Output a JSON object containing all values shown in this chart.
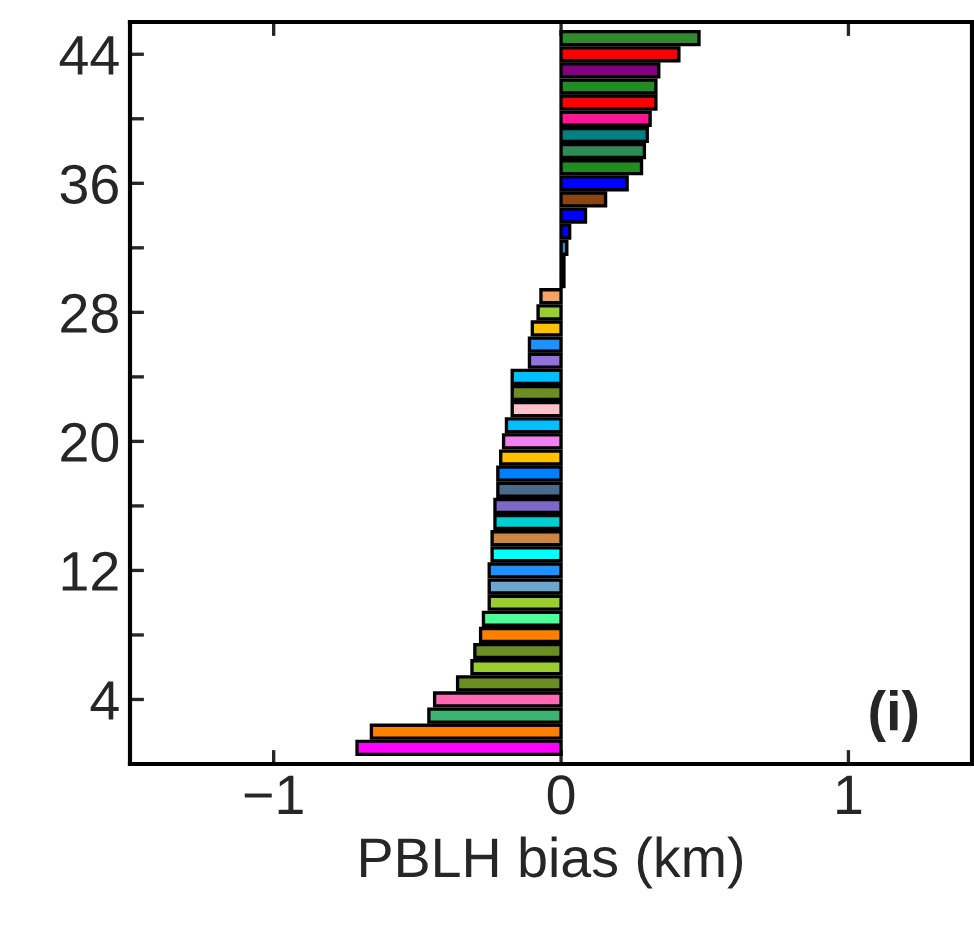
{
  "chart_data": {
    "type": "bar",
    "orientation": "horizontal",
    "xlabel": "PBLH bias (km)",
    "x": [
      1,
      2,
      3,
      4,
      5,
      6,
      7,
      8,
      9,
      10,
      11,
      12,
      13,
      14,
      15,
      16,
      17,
      18,
      19,
      20,
      21,
      22,
      23,
      24,
      25,
      26,
      27,
      28,
      29,
      30,
      31,
      32,
      33,
      34,
      35,
      36,
      37,
      38,
      39,
      40,
      41,
      42,
      43,
      44,
      45
    ],
    "values": [
      -0.71,
      -0.66,
      -0.46,
      -0.44,
      -0.36,
      -0.31,
      -0.3,
      -0.28,
      -0.27,
      -0.25,
      -0.25,
      -0.25,
      -0.24,
      -0.24,
      -0.23,
      -0.23,
      -0.22,
      -0.22,
      -0.21,
      -0.2,
      -0.19,
      -0.17,
      -0.17,
      -0.17,
      -0.11,
      -0.11,
      -0.1,
      -0.08,
      -0.07,
      0.01,
      0.01,
      0.02,
      0.03,
      0.085,
      0.155,
      0.23,
      0.28,
      0.29,
      0.3,
      0.31,
      0.33,
      0.33,
      0.34,
      0.41,
      0.48
    ],
    "colors": [
      "#ff00ff",
      "#ff8000",
      "#3cb371",
      "#ff69b4",
      "#6b8e23",
      "#9acd32",
      "#6b8e23",
      "#ff8000",
      "#4dff99",
      "#9acd32",
      "#6ca6cd",
      "#1e90ff",
      "#00ffff",
      "#cd853f",
      "#00ced1",
      "#7b68c8",
      "#4a6a8a",
      "#0080ff",
      "#ffc000",
      "#ee82ee",
      "#00bfff",
      "#ffc0cb",
      "#6b8e23",
      "#00bfff",
      "#9370db",
      "#1e90ff",
      "#ffc000",
      "#9acd32",
      "#f4a460",
      "#1ea0e6",
      "#000000",
      "#4682b4",
      "#0000ff",
      "#0000ff",
      "#8b4513",
      "#0000ff",
      "#228b22",
      "#2e8b57",
      "#008080",
      "#ff1493",
      "#ff0000",
      "#228b22",
      "#800080",
      "#ff0000",
      "#2e8b2e"
    ],
    "xlim": [
      -1.5,
      1.43
    ],
    "xticks": [
      {
        "value": -1,
        "label": "−1"
      },
      0,
      1
    ],
    "ylim": [
      0,
      46
    ],
    "yticks": [
      4,
      {
        "value": 8,
        "label": null
      },
      12,
      {
        "value": 16,
        "label": null
      },
      20,
      {
        "value": 24,
        "label": null
      },
      28,
      {
        "value": 32,
        "label": null
      },
      36,
      {
        "value": 40,
        "label": null
      },
      44
    ],
    "annotations": [
      "(i)"
    ],
    "grid": false
  }
}
